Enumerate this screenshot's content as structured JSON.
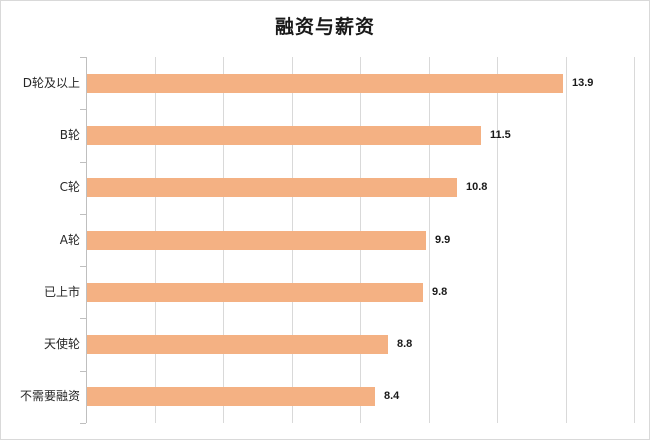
{
  "chart_data": {
    "type": "bar",
    "orientation": "horizontal",
    "title": "融资与薪资",
    "categories": [
      "D轮及以上",
      "B轮",
      "C轮",
      "A轮",
      "已上市",
      "天使轮",
      "不需要融资"
    ],
    "values": [
      13.9,
      11.5,
      10.8,
      9.9,
      9.8,
      8.8,
      8.4
    ],
    "value_labels": [
      "13.9",
      "11.5",
      "10.8",
      "9.9",
      "9.8",
      "8.8",
      "8.4"
    ],
    "xlabel": "",
    "ylabel": "",
    "xlim": [
      0,
      16
    ],
    "x_gridlines": [
      2,
      4,
      6,
      8,
      10,
      12,
      14,
      16
    ],
    "x_tick_labels_visible": false,
    "grid": true,
    "legend": "none",
    "bar_color": "#f4b183"
  }
}
